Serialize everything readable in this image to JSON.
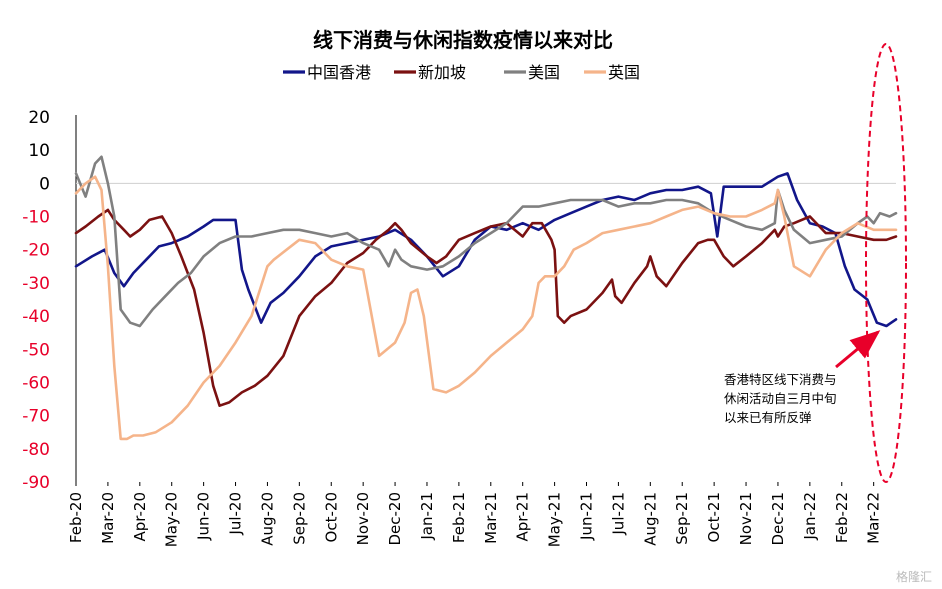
{
  "chart_data": {
    "type": "line",
    "title": "线下消费与休闲指数疫情以来对比",
    "xlabel": "",
    "ylabel": "",
    "ylim": [
      -90,
      20
    ],
    "yticks": [
      20,
      10,
      0,
      -10,
      -20,
      -30,
      -40,
      -50,
      -60,
      -70,
      -80,
      -90
    ],
    "ytick_colors": {
      "positive": "#000000",
      "negative": "#e8002a"
    },
    "xlim": [
      0,
      25.7
    ],
    "x_tick_labels": [
      "Feb-20",
      "Mar-20",
      "Apr-20",
      "May-20",
      "Jun-20",
      "Jul-20",
      "Aug-20",
      "Sep-20",
      "Oct-20",
      "Nov-20",
      "Dec-20",
      "Jan-21",
      "Feb-21",
      "Mar-21",
      "Apr-21",
      "May-21",
      "Jun-21",
      "Jul-21",
      "Aug-21",
      "Sep-21",
      "Oct-21",
      "Nov-21",
      "Dec-21",
      "Jan-22",
      "Feb-22",
      "Mar-22"
    ],
    "grid": false,
    "zero_line": true,
    "legend_position": "top-center",
    "series": [
      {
        "name": "中国香港",
        "color": "#12168a",
        "x": [
          0,
          0.5,
          0.9,
          1.2,
          1.5,
          1.8,
          2.2,
          2.6,
          3.0,
          3.5,
          4.0,
          4.3,
          4.7,
          5.0,
          5.2,
          5.4,
          5.8,
          6.1,
          6.5,
          7.0,
          7.5,
          8.0,
          8.5,
          9.0,
          9.5,
          10.0,
          10.5,
          11.0,
          11.5,
          12.0,
          12.5,
          13.0,
          13.5,
          14.0,
          14.5,
          15.0,
          15.5,
          16.0,
          16.5,
          17.0,
          17.5,
          18.0,
          18.5,
          19.0,
          19.5,
          19.9,
          20.1,
          20.3,
          20.6,
          21.0,
          21.5,
          22.0,
          22.3,
          22.6,
          23.0,
          23.4,
          23.8,
          24.1,
          24.4,
          24.8,
          25.1,
          25.4,
          25.7
        ],
        "y": [
          -25,
          -22,
          -20,
          -27,
          -31,
          -27,
          -23,
          -19,
          -18,
          -16,
          -13,
          -11,
          -11,
          -11,
          -26,
          -32,
          -42,
          -36,
          -33,
          -28,
          -22,
          -19,
          -18,
          -17,
          -16,
          -14,
          -17,
          -22,
          -28,
          -25,
          -17,
          -13,
          -14,
          -12,
          -14,
          -11,
          -9,
          -7,
          -5,
          -4,
          -5,
          -3,
          -2,
          -2,
          -1,
          -3,
          -16,
          -1,
          -1,
          -1,
          -1,
          2,
          3,
          -5,
          -12,
          -13,
          -15,
          -25,
          -32,
          -35,
          -42,
          -43,
          -41
        ]
      },
      {
        "name": "新加坡",
        "color": "#7b1111",
        "x": [
          0,
          0.3,
          0.7,
          1.0,
          1.2,
          1.5,
          1.7,
          2.0,
          2.3,
          2.7,
          3.0,
          3.3,
          3.7,
          4.0,
          4.3,
          4.5,
          4.8,
          5.2,
          5.6,
          6.0,
          6.5,
          7.0,
          7.5,
          8.0,
          8.5,
          9.0,
          9.4,
          9.8,
          10.0,
          10.2,
          10.5,
          11.0,
          11.3,
          11.6,
          12.0,
          12.5,
          13.0,
          13.5,
          14.0,
          14.3,
          14.6,
          14.9,
          15.0,
          15.1,
          15.3,
          15.5,
          16.0,
          16.5,
          16.8,
          16.9,
          17.1,
          17.5,
          17.9,
          18.0,
          18.2,
          18.5,
          19.0,
          19.5,
          19.8,
          20.0,
          20.3,
          20.6,
          21.0,
          21.5,
          21.9,
          22.0,
          22.2,
          22.5,
          23.0,
          23.5,
          24.0,
          24.5,
          25.0,
          25.4,
          25.7
        ],
        "y": [
          -15,
          -13,
          -10,
          -8,
          -11,
          -14,
          -16,
          -14,
          -11,
          -10,
          -15,
          -22,
          -32,
          -45,
          -61,
          -67,
          -66,
          -63,
          -61,
          -58,
          -52,
          -40,
          -34,
          -30,
          -24,
          -21,
          -17,
          -14,
          -12,
          -14,
          -18,
          -22,
          -24,
          -22,
          -17,
          -15,
          -13,
          -12,
          -16,
          -12,
          -12,
          -17,
          -20,
          -40,
          -42,
          -40,
          -38,
          -33,
          -29,
          -34,
          -36,
          -30,
          -25,
          -22,
          -28,
          -31,
          -24,
          -18,
          -17,
          -17,
          -22,
          -25,
          -22,
          -18,
          -14,
          -16,
          -13,
          -12,
          -10,
          -15,
          -15,
          -16,
          -17,
          -17,
          -16
        ]
      },
      {
        "name": "美国",
        "color": "#808080",
        "x": [
          0,
          0.3,
          0.6,
          0.8,
          1.0,
          1.2,
          1.4,
          1.7,
          2.0,
          2.4,
          2.8,
          3.2,
          3.6,
          4.0,
          4.5,
          5.0,
          5.5,
          6.0,
          6.5,
          7.0,
          7.5,
          8.0,
          8.5,
          9.0,
          9.5,
          9.8,
          10.0,
          10.2,
          10.5,
          11.0,
          11.5,
          12.0,
          12.5,
          13.0,
          13.5,
          14.0,
          14.5,
          15.0,
          15.5,
          16.0,
          16.5,
          17.0,
          17.5,
          18.0,
          18.5,
          19.0,
          19.5,
          20.0,
          20.5,
          21.0,
          21.5,
          21.9,
          22.0,
          22.2,
          22.5,
          23.0,
          23.5,
          24.0,
          24.5,
          24.8,
          25.0,
          25.2,
          25.5,
          25.7
        ],
        "y": [
          3,
          -4,
          6,
          8,
          0,
          -10,
          -38,
          -42,
          -43,
          -38,
          -34,
          -30,
          -27,
          -22,
          -18,
          -16,
          -16,
          -15,
          -14,
          -14,
          -15,
          -16,
          -15,
          -18,
          -20,
          -25,
          -20,
          -23,
          -25,
          -26,
          -25,
          -22,
          -18,
          -15,
          -12,
          -7,
          -7,
          -6,
          -5,
          -5,
          -5,
          -7,
          -6,
          -6,
          -5,
          -5,
          -6,
          -9,
          -11,
          -13,
          -14,
          -12,
          -2,
          -8,
          -14,
          -18,
          -17,
          -16,
          -12,
          -10,
          -12,
          -9,
          -10,
          -9
        ]
      },
      {
        "name": "英国",
        "color": "#f5b48a",
        "x": [
          0,
          0.3,
          0.6,
          0.8,
          1.0,
          1.2,
          1.4,
          1.6,
          1.8,
          2.1,
          2.5,
          3.0,
          3.5,
          4.0,
          4.5,
          5.0,
          5.5,
          5.9,
          6.0,
          6.2,
          6.6,
          7.0,
          7.5,
          8.0,
          8.5,
          9.0,
          9.5,
          10.0,
          10.3,
          10.5,
          10.7,
          10.9,
          11.2,
          11.6,
          12.0,
          12.5,
          13.0,
          13.5,
          14.0,
          14.3,
          14.5,
          14.7,
          15.0,
          15.3,
          15.6,
          16.0,
          16.5,
          17.0,
          17.5,
          18.0,
          18.5,
          19.0,
          19.5,
          20.0,
          20.5,
          21.0,
          21.5,
          21.9,
          22.0,
          22.2,
          22.5,
          23.0,
          23.5,
          24.0,
          24.5,
          25.0,
          25.4,
          25.7
        ],
        "y": [
          -3,
          0,
          2,
          -2,
          -25,
          -55,
          -77,
          -77,
          -76,
          -76,
          -75,
          -72,
          -67,
          -60,
          -55,
          -48,
          -40,
          -28,
          -25,
          -23,
          -20,
          -17,
          -18,
          -23,
          -25,
          -26,
          -52,
          -48,
          -42,
          -33,
          -32,
          -40,
          -62,
          -63,
          -61,
          -57,
          -52,
          -48,
          -44,
          -40,
          -30,
          -28,
          -28,
          -25,
          -20,
          -18,
          -15,
          -14,
          -13,
          -12,
          -10,
          -8,
          -7,
          -9,
          -10,
          -10,
          -8,
          -6,
          -2,
          -10,
          -25,
          -28,
          -20,
          -15,
          -12,
          -14,
          -14,
          -14
        ]
      }
    ],
    "annotations": [
      {
        "lines": [
          "香港特区线下消费与",
          "休闲活动自三月中旬",
          "以来已有所反弹"
        ],
        "arrow_color": "#e8002a",
        "highlight": "red dashed ellipse around Feb-22 to Mar-22"
      }
    ]
  },
  "watermark": "格隆汇"
}
